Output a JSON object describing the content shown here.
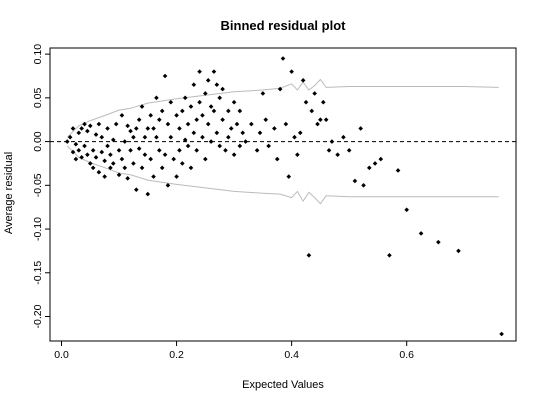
{
  "chart_data": {
    "type": "scatter",
    "title": "Binned residual plot",
    "xlabel": "Expected Values",
    "ylabel": "Average residual",
    "xlim": [
      -0.02,
      0.79
    ],
    "ylim": [
      -0.228,
      0.107
    ],
    "x_ticks": [
      0.0,
      0.2,
      0.4,
      0.6
    ],
    "x_tick_labels": [
      "0.0",
      "0.2",
      "0.4",
      "0.6"
    ],
    "y_ticks": [
      -0.2,
      -0.15,
      -0.1,
      -0.05,
      0.0,
      0.05,
      0.1
    ],
    "y_tick_labels": [
      "-0.20",
      "-0.15",
      "-0.10",
      "-0.05",
      "0.00",
      "0.05",
      "0.10"
    ],
    "grid": false,
    "reference_line": {
      "y": 0,
      "style": "dashed",
      "color": "#000000"
    },
    "band_color": "#bbbbbb",
    "point_color": "#000000",
    "bands": {
      "upper": [
        [
          0.01,
          0.005
        ],
        [
          0.03,
          0.018
        ],
        [
          0.05,
          0.024
        ],
        [
          0.08,
          0.031
        ],
        [
          0.1,
          0.036
        ],
        [
          0.12,
          0.038
        ],
        [
          0.15,
          0.044
        ],
        [
          0.18,
          0.047
        ],
        [
          0.2,
          0.049
        ],
        [
          0.25,
          0.053
        ],
        [
          0.3,
          0.057
        ],
        [
          0.35,
          0.059
        ],
        [
          0.38,
          0.061
        ],
        [
          0.4,
          0.066
        ],
        [
          0.41,
          0.059
        ],
        [
          0.42,
          0.068
        ],
        [
          0.43,
          0.059
        ],
        [
          0.44,
          0.064
        ],
        [
          0.45,
          0.071
        ],
        [
          0.46,
          0.062
        ],
        [
          0.5,
          0.063
        ],
        [
          0.6,
          0.063
        ],
        [
          0.7,
          0.063
        ],
        [
          0.76,
          0.062
        ]
      ],
      "lower": [
        [
          0.01,
          -0.005
        ],
        [
          0.03,
          -0.018
        ],
        [
          0.05,
          -0.024
        ],
        [
          0.08,
          -0.031
        ],
        [
          0.1,
          -0.036
        ],
        [
          0.12,
          -0.038
        ],
        [
          0.15,
          -0.044
        ],
        [
          0.18,
          -0.047
        ],
        [
          0.2,
          -0.049
        ],
        [
          0.25,
          -0.053
        ],
        [
          0.3,
          -0.057
        ],
        [
          0.35,
          -0.059
        ],
        [
          0.38,
          -0.06
        ],
        [
          0.4,
          -0.064
        ],
        [
          0.41,
          -0.057
        ],
        [
          0.42,
          -0.068
        ],
        [
          0.43,
          -0.058
        ],
        [
          0.44,
          -0.064
        ],
        [
          0.45,
          -0.071
        ],
        [
          0.46,
          -0.062
        ],
        [
          0.5,
          -0.063
        ],
        [
          0.6,
          -0.063
        ],
        [
          0.7,
          -0.063
        ],
        [
          0.76,
          -0.063
        ]
      ]
    },
    "points": [
      [
        0.01,
        0.0
      ],
      [
        0.015,
        0.005
      ],
      [
        0.02,
        0.015
      ],
      [
        0.02,
        -0.012
      ],
      [
        0.025,
        -0.003
      ],
      [
        0.025,
        -0.02
      ],
      [
        0.03,
        0.01
      ],
      [
        0.03,
        -0.01
      ],
      [
        0.035,
        0.015
      ],
      [
        0.035,
        -0.018
      ],
      [
        0.04,
        0.02
      ],
      [
        0.04,
        -0.005
      ],
      [
        0.045,
        -0.015
      ],
      [
        0.045,
        0.012
      ],
      [
        0.05,
        -0.025
      ],
      [
        0.05,
        0.018
      ],
      [
        0.055,
        -0.01
      ],
      [
        0.055,
        -0.03
      ],
      [
        0.06,
        0.008
      ],
      [
        0.06,
        -0.018
      ],
      [
        0.065,
        0.02
      ],
      [
        0.065,
        -0.035
      ],
      [
        0.07,
        -0.012
      ],
      [
        0.07,
        0.005
      ],
      [
        0.075,
        -0.04
      ],
      [
        0.075,
        -0.022
      ],
      [
        0.08,
        0.015
      ],
      [
        0.08,
        -0.005
      ],
      [
        0.085,
        -0.03
      ],
      [
        0.085,
        -0.015
      ],
      [
        0.09,
        0.002
      ],
      [
        0.09,
        -0.025
      ],
      [
        0.095,
        0.02
      ],
      [
        0.1,
        -0.038
      ],
      [
        0.1,
        -0.01
      ],
      [
        0.105,
        0.03
      ],
      [
        0.105,
        -0.02
      ],
      [
        0.11,
        0.0
      ],
      [
        0.11,
        -0.03
      ],
      [
        0.115,
        0.018
      ],
      [
        0.115,
        -0.042
      ],
      [
        0.12,
        -0.01
      ],
      [
        0.12,
        0.012
      ],
      [
        0.125,
        -0.025
      ],
      [
        0.125,
        0.005
      ],
      [
        0.13,
        -0.055
      ],
      [
        0.13,
        0.015
      ],
      [
        0.135,
        -0.008
      ],
      [
        0.135,
        0.025
      ],
      [
        0.14,
        -0.03
      ],
      [
        0.14,
        0.04
      ],
      [
        0.145,
        -0.015
      ],
      [
        0.145,
        0.005
      ],
      [
        0.15,
        -0.06
      ],
      [
        0.15,
        0.015
      ],
      [
        0.155,
        -0.02
      ],
      [
        0.155,
        0.03
      ],
      [
        0.16,
        0.015
      ],
      [
        0.16,
        -0.04
      ],
      [
        0.165,
        0.05
      ],
      [
        0.165,
        0.005
      ],
      [
        0.17,
        -0.01
      ],
      [
        0.17,
        0.025
      ],
      [
        0.175,
        -0.03
      ],
      [
        0.175,
        0.035
      ],
      [
        0.18,
        0.075
      ],
      [
        0.18,
        -0.015
      ],
      [
        0.185,
        0.02
      ],
      [
        0.185,
        -0.05
      ],
      [
        0.19,
        0.005
      ],
      [
        0.19,
        0.045
      ],
      [
        0.195,
        -0.02
      ],
      [
        0.2,
        0.03
      ],
      [
        0.2,
        -0.04
      ],
      [
        0.205,
        0.015
      ],
      [
        0.205,
        -0.01
      ],
      [
        0.21,
        0.035
      ],
      [
        0.21,
        -0.025
      ],
      [
        0.215,
        0.002
      ],
      [
        0.215,
        0.05
      ],
      [
        0.22,
        -0.005
      ],
      [
        0.22,
        0.02
      ],
      [
        0.225,
        0.04
      ],
      [
        0.225,
        -0.03
      ],
      [
        0.23,
        0.065
      ],
      [
        0.23,
        0.01
      ],
      [
        0.235,
        -0.01
      ],
      [
        0.235,
        0.025
      ],
      [
        0.24,
        0.08
      ],
      [
        0.24,
        0.045
      ],
      [
        0.245,
        0.005
      ],
      [
        0.245,
        0.03
      ],
      [
        0.25,
        0.055
      ],
      [
        0.25,
        -0.02
      ],
      [
        0.255,
        0.07
      ],
      [
        0.255,
        0.02
      ],
      [
        0.26,
        0.04
      ],
      [
        0.26,
        0.0
      ],
      [
        0.265,
        0.08
      ],
      [
        0.265,
        0.035
      ],
      [
        0.27,
        0.065
      ],
      [
        0.27,
        0.01
      ],
      [
        0.275,
        0.05
      ],
      [
        0.275,
        -0.005
      ],
      [
        0.28,
        0.025
      ],
      [
        0.28,
        0.06
      ],
      [
        0.285,
        -0.01
      ],
      [
        0.29,
        0.035
      ],
      [
        0.29,
        0.005
      ],
      [
        0.295,
        0.015
      ],
      [
        0.3,
        -0.015
      ],
      [
        0.3,
        0.045
      ],
      [
        0.305,
        0.02
      ],
      [
        0.31,
        -0.005
      ],
      [
        0.31,
        0.035
      ],
      [
        0.315,
        0.01
      ],
      [
        0.32,
        0.0
      ],
      [
        0.33,
        0.02
      ],
      [
        0.34,
        -0.01
      ],
      [
        0.345,
        0.01
      ],
      [
        0.35,
        0.055
      ],
      [
        0.355,
        0.025
      ],
      [
        0.36,
        -0.005
      ],
      [
        0.37,
        0.015
      ],
      [
        0.375,
        -0.02
      ],
      [
        0.38,
        0.06
      ],
      [
        0.385,
        0.095
      ],
      [
        0.39,
        0.02
      ],
      [
        0.395,
        -0.04
      ],
      [
        0.4,
        0.08
      ],
      [
        0.405,
        0.005
      ],
      [
        0.41,
        -0.015
      ],
      [
        0.415,
        0.01
      ],
      [
        0.42,
        0.07
      ],
      [
        0.425,
        0.045
      ],
      [
        0.43,
        -0.13
      ],
      [
        0.435,
        0.035
      ],
      [
        0.44,
        0.055
      ],
      [
        0.445,
        0.02
      ],
      [
        0.45,
        0.025
      ],
      [
        0.455,
        0.045
      ],
      [
        0.46,
        0.025
      ],
      [
        0.465,
        -0.01
      ],
      [
        0.47,
        0.0
      ],
      [
        0.48,
        -0.015
      ],
      [
        0.49,
        0.005
      ],
      [
        0.5,
        -0.01
      ],
      [
        0.51,
        -0.045
      ],
      [
        0.52,
        0.015
      ],
      [
        0.525,
        -0.05
      ],
      [
        0.535,
        -0.03
      ],
      [
        0.545,
        -0.025
      ],
      [
        0.555,
        -0.02
      ],
      [
        0.57,
        -0.13
      ],
      [
        0.585,
        -0.033
      ],
      [
        0.6,
        -0.078
      ],
      [
        0.625,
        -0.105
      ],
      [
        0.655,
        -0.115
      ],
      [
        0.69,
        -0.125
      ],
      [
        0.765,
        -0.22
      ]
    ]
  }
}
